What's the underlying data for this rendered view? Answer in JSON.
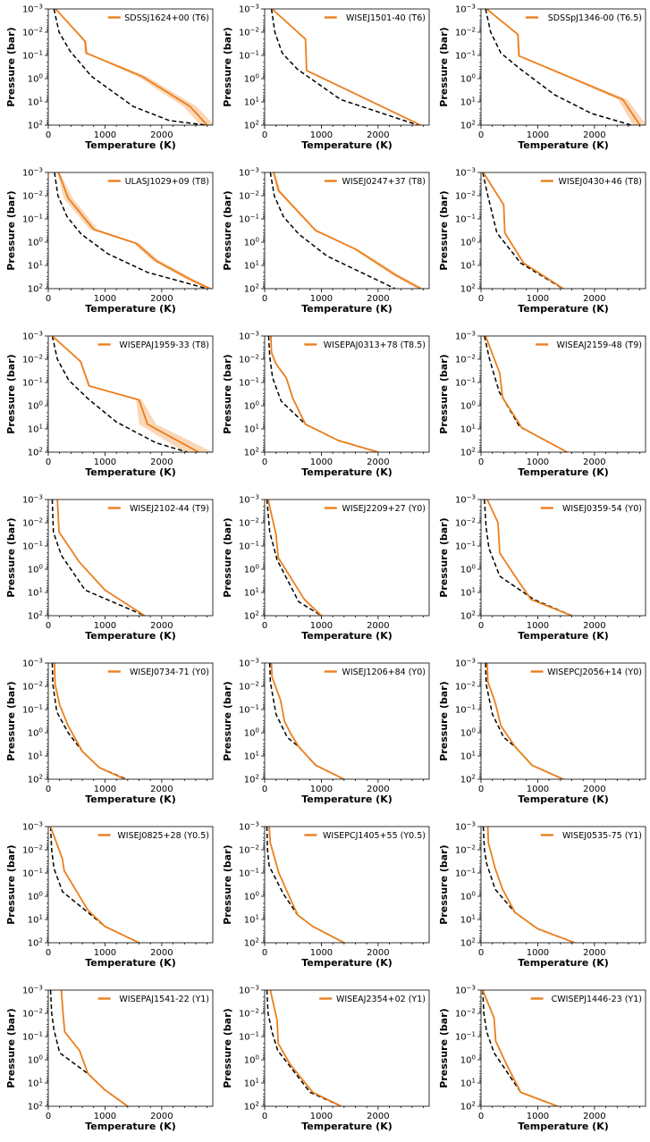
{
  "figure": {
    "x_axis_label": "Temperature (K)",
    "y_axis_label": "Pressure (bar)",
    "colors": {
      "retrieved": "#ec7f1c",
      "band": "#f8c9a0",
      "reference": "#000000"
    }
  },
  "chart_data": [
    {
      "type": "line",
      "legend": "SDSSJ1624+00 (T6)",
      "xlim": [
        0,
        2900
      ],
      "ylim_log10": [
        2,
        -3
      ],
      "xticks": [
        0,
        1000,
        2000
      ],
      "retrieved": {
        "T": [
          130,
          650,
          670,
          1650,
          2500,
          2800
        ],
        "log10P": [
          -3,
          -1.6,
          -1.1,
          -0.1,
          1.2,
          2
        ]
      },
      "band_halfwidth_K": [
        10,
        20,
        30,
        80,
        120,
        120
      ],
      "reference": {
        "T": [
          100,
          190,
          380,
          760,
          1500,
          2130,
          2780
        ],
        "log10P": [
          -3,
          -2,
          -1.2,
          -0.1,
          1.2,
          1.8,
          2
        ]
      }
    },
    {
      "type": "line",
      "legend": "WISEJ1501-40 (T6)",
      "xlim": [
        0,
        2900
      ],
      "ylim_log10": [
        2,
        -3
      ],
      "xticks": [
        0,
        1000,
        2000
      ],
      "retrieved": {
        "T": [
          130,
          720,
          740,
          2750
        ],
        "log10P": [
          -3,
          -1.7,
          -0.35,
          2
        ]
      },
      "band_halfwidth_K": [
        10,
        10,
        10,
        20
      ],
      "reference": {
        "T": [
          120,
          180,
          310,
          580,
          1340,
          2700
        ],
        "log10P": [
          -3,
          -2,
          -1.1,
          -0.4,
          0.9,
          2
        ]
      }
    },
    {
      "type": "line",
      "legend": "SDSSpJ1346-00 (T6.5)",
      "xlim": [
        0,
        2900
      ],
      "ylim_log10": [
        2,
        -3
      ],
      "xticks": [
        0,
        1000,
        2000
      ],
      "retrieved": {
        "T": [
          100,
          650,
          670,
          2500,
          2800
        ],
        "log10P": [
          -3,
          -1.9,
          -0.98,
          0.9,
          2
        ]
      },
      "band_halfwidth_K": [
        10,
        15,
        20,
        80,
        120
      ],
      "reference": {
        "T": [
          80,
          170,
          350,
          700,
          1300,
          1950,
          2650
        ],
        "log10P": [
          -3,
          -2,
          -1.1,
          -0.4,
          0.7,
          1.5,
          2
        ]
      }
    },
    {
      "type": "line",
      "legend": "ULASJ1029+09 (T8)",
      "xlim": [
        0,
        2900
      ],
      "ylim_log10": [
        2,
        -3
      ],
      "xticks": [
        0,
        1000,
        2000
      ],
      "retrieved": {
        "T": [
          180,
          350,
          800,
          1550,
          1900,
          2500,
          2850
        ],
        "log10P": [
          -3,
          -1.9,
          -0.55,
          0.05,
          0.8,
          1.6,
          2
        ]
      },
      "band_halfwidth_K": [
        20,
        80,
        70,
        50,
        60,
        70,
        40
      ],
      "reference": {
        "T": [
          110,
          170,
          330,
          580,
          1050,
          1750,
          2800
        ],
        "log10P": [
          -3,
          -2,
          -1.1,
          -0.35,
          0.5,
          1.3,
          2
        ]
      }
    },
    {
      "type": "line",
      "legend": "WISEJ0247+37 (T8)",
      "xlim": [
        0,
        2900
      ],
      "ylim_log10": [
        2,
        -3
      ],
      "xticks": [
        0,
        1000,
        2000
      ],
      "retrieved": {
        "T": [
          160,
          250,
          900,
          1600,
          2300,
          2750
        ],
        "log10P": [
          -3,
          -2.2,
          -0.5,
          0.3,
          1.4,
          2
        ]
      },
      "band_halfwidth_K": [
        15,
        30,
        20,
        40,
        60,
        60
      ],
      "reference": {
        "T": [
          100,
          170,
          330,
          600,
          1100,
          2300
        ],
        "log10P": [
          -3,
          -2,
          -1.1,
          -0.35,
          0.6,
          2
        ]
      }
    },
    {
      "type": "line",
      "legend": "WISEJ0430+46 (T8)",
      "xlim": [
        0,
        2900
      ],
      "ylim_log10": [
        2,
        -3
      ],
      "xticks": [
        0,
        1000,
        2000
      ],
      "retrieved": {
        "T": [
          40,
          400,
          420,
          750,
          1450
        ],
        "log10P": [
          -3,
          -1.6,
          -0.4,
          0.9,
          2
        ]
      },
      "band_halfwidth_K": [
        5,
        5,
        5,
        5,
        5
      ],
      "reference": {
        "T": [
          30,
          120,
          280,
          700,
          1440
        ],
        "log10P": [
          -3,
          -2,
          -0.4,
          0.9,
          2
        ]
      }
    },
    {
      "type": "line",
      "legend": "WISEPAJ1959-33 (T8)",
      "xlim": [
        0,
        2900
      ],
      "ylim_log10": [
        2,
        -3
      ],
      "xticks": [
        0,
        1000,
        2000
      ],
      "retrieved": {
        "T": [
          70,
          570,
          720,
          1600,
          1750,
          2650
        ],
        "log10P": [
          -3,
          -1.9,
          -0.85,
          -0.25,
          0.8,
          2
        ]
      },
      "band_halfwidth_K": [
        10,
        15,
        20,
        50,
        150,
        250
      ],
      "reference": {
        "T": [
          70,
          160,
          360,
          700,
          1200,
          1900,
          2450
        ],
        "log10P": [
          -3,
          -2,
          -1.1,
          -0.3,
          0.7,
          1.6,
          2
        ]
      }
    },
    {
      "type": "line",
      "legend": "WISEPAJ0313+78 (T8.5)",
      "xlim": [
        0,
        2900
      ],
      "ylim_log10": [
        2,
        -3
      ],
      "xticks": [
        0,
        1000,
        2000
      ],
      "retrieved": {
        "T": [
          110,
          120,
          200,
          380,
          500,
          720,
          1300,
          2000
        ],
        "log10P": [
          -3,
          -2.3,
          -1.8,
          -1.2,
          -0.3,
          0.8,
          1.5,
          2
        ]
      },
      "band_halfwidth_K": [
        5,
        5,
        5,
        5,
        10,
        15,
        15,
        15
      ],
      "reference": {
        "T": [
          70,
          90,
          140,
          290,
          720,
          1300,
          2000
        ],
        "log10P": [
          -3,
          -2.1,
          -1.2,
          -0.2,
          0.8,
          1.5,
          2
        ]
      }
    },
    {
      "type": "line",
      "legend": "WISEAJ2159-48 (T9)",
      "xlim": [
        0,
        2900
      ],
      "ylim_log10": [
        2,
        -3
      ],
      "xticks": [
        0,
        1000,
        2000
      ],
      "retrieved": {
        "T": [
          80,
          330,
          380,
          720,
          1520
        ],
        "log10P": [
          -3,
          -1.4,
          -0.35,
          0.95,
          2
        ]
      },
      "band_halfwidth_K": [
        5,
        5,
        5,
        5,
        5
      ],
      "reference": {
        "T": [
          60,
          150,
          320,
          680,
          1520
        ],
        "log10P": [
          -3,
          -2,
          -0.6,
          0.9,
          2
        ]
      }
    },
    {
      "type": "line",
      "legend": "WISEJ2102-44 (T9)",
      "xlim": [
        0,
        2900
      ],
      "ylim_log10": [
        2,
        -3
      ],
      "xticks": [
        0,
        1000,
        2000
      ],
      "retrieved": {
        "T": [
          160,
          190,
          550,
          1000,
          1700
        ],
        "log10P": [
          -3,
          -1.6,
          -0.3,
          0.9,
          2
        ]
      },
      "band_halfwidth_K": [
        5,
        5,
        5,
        5,
        5
      ],
      "reference": {
        "T": [
          70,
          90,
          230,
          650,
          1700
        ],
        "log10P": [
          -3,
          -1.6,
          -0.6,
          0.9,
          2
        ]
      }
    },
    {
      "type": "line",
      "legend": "WISEJ2209+27 (Y0)",
      "xlim": [
        0,
        2900
      ],
      "ylim_log10": [
        2,
        -3
      ],
      "xticks": [
        0,
        1000,
        2000
      ],
      "retrieved": {
        "T": [
          60,
          200,
          240,
          700,
          1000
        ],
        "log10P": [
          -3,
          -1.5,
          -0.5,
          1.3,
          2
        ]
      },
      "band_halfwidth_K": [
        5,
        5,
        5,
        5,
        5
      ],
      "reference": {
        "T": [
          40,
          90,
          220,
          600,
          1000
        ],
        "log10P": [
          -3,
          -1.6,
          -0.4,
          1.4,
          2
        ]
      }
    },
    {
      "type": "line",
      "legend": "WISEJ0359-54 (Y0)",
      "xlim": [
        0,
        2900
      ],
      "ylim_log10": [
        2,
        -3
      ],
      "xticks": [
        0,
        1000,
        2000
      ],
      "retrieved": {
        "T": [
          110,
          300,
          330,
          600,
          880,
          1600
        ],
        "log10P": [
          -3,
          -2,
          -0.7,
          0.3,
          1.3,
          2
        ]
      },
      "band_halfwidth_K": [
        5,
        5,
        5,
        5,
        5,
        5
      ],
      "reference": {
        "T": [
          60,
          90,
          140,
          330,
          930,
          1600
        ],
        "log10P": [
          -3,
          -1.8,
          -0.9,
          0.3,
          1.3,
          2
        ]
      }
    },
    {
      "type": "line",
      "legend": "WISEJ0734-71 (Y0)",
      "xlim": [
        0,
        2900
      ],
      "ylim_log10": [
        2,
        -3
      ],
      "xticks": [
        0,
        1000,
        2000
      ],
      "retrieved": {
        "T": [
          110,
          120,
          200,
          350,
          600,
          900,
          1350
        ],
        "log10P": [
          -3,
          -2.1,
          -1.2,
          -0.3,
          0.8,
          1.5,
          2
        ]
      },
      "band_halfwidth_K": [
        5,
        5,
        5,
        5,
        5,
        5,
        5
      ],
      "reference": {
        "T": [
          70,
          80,
          150,
          350,
          600,
          900,
          1380
        ],
        "log10P": [
          -3,
          -2.1,
          -0.9,
          0,
          0.8,
          1.5,
          2
        ]
      }
    },
    {
      "type": "line",
      "legend": "WISEJ1206+84 (Y0)",
      "xlim": [
        0,
        2900
      ],
      "ylim_log10": [
        2,
        -3
      ],
      "xticks": [
        0,
        1000,
        2000
      ],
      "retrieved": {
        "T": [
          120,
          130,
          280,
          350,
          450,
          600,
          900,
          1400
        ],
        "log10P": [
          -3,
          -2.4,
          -1.4,
          -0.5,
          0,
          0.6,
          1.4,
          2
        ]
      },
      "band_halfwidth_K": [
        5,
        5,
        5,
        5,
        5,
        5,
        5,
        5
      ],
      "reference": {
        "T": [
          90,
          100,
          200,
          400,
          600,
          900,
          1400
        ],
        "log10P": [
          -3,
          -2.2,
          -0.8,
          0.2,
          0.6,
          1.4,
          2
        ]
      }
    },
    {
      "type": "line",
      "legend": "WISEPCJ2056+14 (Y0)",
      "xlim": [
        0,
        2900
      ],
      "ylim_log10": [
        2,
        -3
      ],
      "xticks": [
        0,
        1000,
        2000
      ],
      "retrieved": {
        "T": [
          110,
          120,
          250,
          350,
          600,
          900,
          1450
        ],
        "log10P": [
          -3,
          -2.2,
          -1.3,
          -0.3,
          0.6,
          1.4,
          2
        ]
      },
      "band_halfwidth_K": [
        5,
        5,
        5,
        5,
        5,
        5,
        5
      ],
      "reference": {
        "T": [
          80,
          90,
          200,
          400,
          600,
          900,
          1450
        ],
        "log10P": [
          -3,
          -2.1,
          -0.8,
          0.2,
          0.6,
          1.4,
          2
        ]
      }
    },
    {
      "type": "line",
      "legend": "WISEJ0825+28 (Y0.5)",
      "xlim": [
        0,
        2900
      ],
      "ylim_log10": [
        2,
        -3
      ],
      "xticks": [
        0,
        1000,
        2000
      ],
      "retrieved": {
        "T": [
          40,
          250,
          280,
          700,
          1000,
          1600
        ],
        "log10P": [
          -3,
          -1.6,
          -1.1,
          0.6,
          1.3,
          2
        ]
      },
      "band_halfwidth_K": [
        5,
        5,
        5,
        5,
        5,
        5
      ],
      "reference": {
        "T": [
          40,
          60,
          100,
          250,
          700,
          1000,
          1600
        ],
        "log10P": [
          -3,
          -2,
          -1.2,
          -0.2,
          0.7,
          1.3,
          2
        ]
      }
    },
    {
      "type": "line",
      "legend": "WISEPCJ1405+55 (Y0.5)",
      "xlim": [
        0,
        2900
      ],
      "ylim_log10": [
        2,
        -3
      ],
      "xticks": [
        0,
        1000,
        2000
      ],
      "retrieved": {
        "T": [
          80,
          100,
          250,
          580,
          850,
          1400
        ],
        "log10P": [
          -3,
          -2.3,
          -1,
          0.8,
          1.3,
          2
        ]
      },
      "band_halfwidth_K": [
        5,
        5,
        5,
        5,
        5,
        5
      ],
      "reference": {
        "T": [
          40,
          50,
          80,
          330,
          580,
          850,
          1400
        ],
        "log10P": [
          -3,
          -2,
          -1.3,
          -0.1,
          0.8,
          1.3,
          2
        ]
      }
    },
    {
      "type": "line",
      "legend": "WISEJ0535-75 (Y1)",
      "xlim": [
        0,
        2900
      ],
      "ylim_log10": [
        2,
        -3
      ],
      "xticks": [
        0,
        1000,
        2000
      ],
      "retrieved": {
        "T": [
          120,
          130,
          250,
          380,
          600,
          1000,
          1650
        ],
        "log10P": [
          -3,
          -2.3,
          -1.2,
          -0.3,
          0.7,
          1.4,
          2
        ]
      },
      "band_halfwidth_K": [
        5,
        5,
        5,
        5,
        5,
        5,
        5
      ],
      "reference": {
        "T": [
          40,
          60,
          100,
          250,
          600,
          1000,
          1650
        ],
        "log10P": [
          -3,
          -2,
          -1.4,
          -0.3,
          0.7,
          1.4,
          2
        ]
      }
    },
    {
      "type": "line",
      "legend": "WISEPAJ1541-22 (Y1)",
      "xlim": [
        0,
        2900
      ],
      "ylim_log10": [
        2,
        -3
      ],
      "xticks": [
        0,
        1000,
        2000
      ],
      "retrieved": {
        "T": [
          230,
          260,
          290,
          550,
          700,
          1000,
          1400
        ],
        "log10P": [
          -3,
          -2,
          -1.2,
          -0.4,
          0.6,
          1.3,
          2
        ]
      },
      "band_halfwidth_K": [
        5,
        5,
        5,
        5,
        5,
        5,
        5
      ],
      "reference": {
        "T": [
          40,
          60,
          100,
          200,
          700,
          1000,
          1400
        ],
        "log10P": [
          -3,
          -2,
          -1.3,
          -0.3,
          0.6,
          1.3,
          2
        ]
      }
    },
    {
      "type": "line",
      "legend": "WISEAJ2354+02 (Y1)",
      "xlim": [
        0,
        2900
      ],
      "ylim_log10": [
        2,
        -3
      ],
      "xticks": [
        0,
        1000,
        2000
      ],
      "retrieved": {
        "T": [
          100,
          220,
          240,
          450,
          850,
          1350
        ],
        "log10P": [
          -3,
          -1.7,
          -0.7,
          0.2,
          1.4,
          2
        ]
      },
      "band_halfwidth_K": [
        5,
        5,
        5,
        5,
        5,
        5
      ],
      "reference": {
        "T": [
          40,
          60,
          130,
          230,
          800,
          1350
        ],
        "log10P": [
          -3,
          -2,
          -1.2,
          -0.4,
          1.4,
          2
        ]
      }
    },
    {
      "type": "line",
      "legend": "CWISEPJ1446-23 (Y1)",
      "xlim": [
        0,
        2900
      ],
      "ylim_log10": [
        2,
        -3
      ],
      "xticks": [
        0,
        1000,
        2000
      ],
      "retrieved": {
        "T": [
          30,
          230,
          260,
          450,
          700,
          1350
        ],
        "log10P": [
          -3,
          -1.8,
          -0.8,
          0.2,
          1.4,
          2
        ]
      },
      "band_halfwidth_K": [
        5,
        5,
        5,
        5,
        5,
        5
      ],
      "reference": {
        "T": [
          30,
          50,
          100,
          230,
          700,
          1350
        ],
        "log10P": [
          -3,
          -2,
          -1.2,
          -0.3,
          1.4,
          2
        ]
      }
    }
  ]
}
